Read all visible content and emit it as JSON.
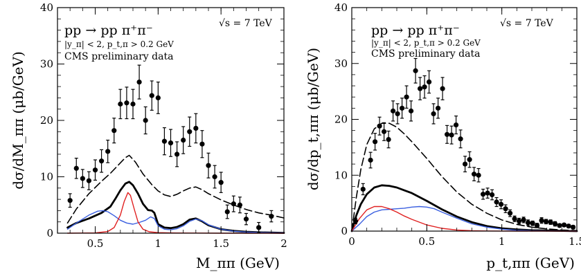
{
  "chart_data": [
    {
      "type": "scatter",
      "xlabel": "M_ππ (GeV)",
      "ylabel": "dσ/dM_ππ (μb/GeV)",
      "xlim": [
        0.2,
        2.0
      ],
      "ylim": [
        0,
        40
      ],
      "xticks": [
        0.5,
        1,
        1.5,
        2
      ],
      "yticks": [
        0,
        10,
        20,
        30,
        40
      ],
      "xtick_labels": [
        "0.5",
        "1",
        "1.5",
        "2"
      ],
      "ytick_labels": [
        "0",
        "10",
        "20",
        "30",
        "40"
      ],
      "grid": false,
      "annotations": {
        "process": "pp → pp π⁺π⁻",
        "energy": "√s = 7 TeV",
        "cuts": "|y_π| < 2,   p_t,π > 0.2 GeV",
        "source": "CMS preliminary data"
      },
      "series": [
        {
          "style": "points-with-errors",
          "color": "#000000",
          "x": [
            0.3,
            0.35,
            0.4,
            0.45,
            0.5,
            0.55,
            0.6,
            0.65,
            0.7,
            0.75,
            0.8,
            0.85,
            0.9,
            0.95,
            1.0,
            1.05,
            1.1,
            1.15,
            1.2,
            1.25,
            1.3,
            1.35,
            1.4,
            1.45,
            1.5,
            1.55,
            1.6,
            1.65,
            1.7,
            1.8,
            1.9
          ],
          "y": [
            5.8,
            11.5,
            9.7,
            9.3,
            11.2,
            12.8,
            14.5,
            18.2,
            22.9,
            23.1,
            22.9,
            26.8,
            20.0,
            24.4,
            24.0,
            16.3,
            16.0,
            14.0,
            16.5,
            18.0,
            18.6,
            15.8,
            12.0,
            10.0,
            9.0,
            3.8,
            5.2,
            5.0,
            2.5,
            1.0,
            3.0
          ],
          "yerr": [
            1.2,
            1.8,
            1.6,
            1.6,
            1.8,
            2.0,
            2.0,
            2.2,
            2.6,
            2.8,
            2.6,
            3.0,
            2.4,
            2.6,
            2.8,
            2.4,
            2.4,
            2.2,
            2.4,
            2.6,
            2.6,
            2.4,
            2.2,
            2.0,
            1.8,
            1.2,
            1.4,
            1.4,
            1.0,
            0.9,
            1.0
          ]
        },
        {
          "style": "dashed",
          "color": "#000000",
          "x": [
            0.28,
            0.35,
            0.45,
            0.55,
            0.62,
            0.68,
            0.74,
            0.77,
            0.82,
            0.88,
            0.95,
            1.0,
            1.05,
            1.1,
            1.15,
            1.2,
            1.25,
            1.3,
            1.35,
            1.4,
            1.5,
            1.6,
            1.7,
            1.8,
            1.9,
            2.0
          ],
          "y": [
            1.8,
            4.3,
            7.0,
            9.2,
            10.6,
            12.0,
            13.4,
            13.8,
            12.6,
            10.5,
            8.6,
            7.5,
            6.8,
            6.5,
            6.9,
            7.5,
            8.0,
            8.2,
            7.7,
            7.0,
            5.9,
            5.0,
            4.2,
            3.6,
            3.2,
            2.7
          ]
        },
        {
          "style": "thick",
          "color": "#000000",
          "x": [
            0.28,
            0.35,
            0.45,
            0.55,
            0.62,
            0.66,
            0.7,
            0.74,
            0.77,
            0.8,
            0.84,
            0.88,
            0.92,
            0.95,
            0.97,
            1.0,
            1.05,
            1.1,
            1.15,
            1.2,
            1.25,
            1.3,
            1.35,
            1.4,
            1.5,
            1.6,
            1.7,
            1.8,
            1.9,
            2.0
          ],
          "y": [
            1.0,
            1.8,
            2.6,
            3.6,
            4.7,
            6.1,
            7.6,
            8.8,
            9.1,
            8.5,
            7.0,
            5.2,
            4.1,
            4.0,
            3.6,
            1.6,
            1.0,
            0.9,
            1.1,
            1.6,
            2.4,
            2.6,
            2.1,
            1.4,
            0.7,
            0.4,
            0.25,
            0.15,
            0.1,
            0.05
          ]
        },
        {
          "style": "solid",
          "color": "#3a5fe0",
          "x": [
            0.28,
            0.35,
            0.45,
            0.52,
            0.56,
            0.6,
            0.65,
            0.7,
            0.75,
            0.8,
            0.85,
            0.9,
            0.94,
            0.97,
            1.0,
            1.05,
            1.1,
            1.15,
            1.2,
            1.25,
            1.3,
            1.35,
            1.4,
            1.5,
            1.6,
            1.7,
            1.8,
            1.9,
            2.0
          ],
          "y": [
            0.7,
            1.8,
            3.2,
            3.9,
            4.0,
            3.8,
            3.1,
            2.3,
            1.8,
            1.6,
            1.9,
            2.3,
            2.9,
            2.6,
            1.3,
            0.7,
            0.6,
            0.8,
            1.3,
            2.1,
            2.5,
            2.2,
            1.5,
            0.7,
            0.35,
            0.2,
            0.12,
            0.08,
            0.05
          ]
        },
        {
          "style": "solid",
          "color": "#e02020",
          "x": [
            0.28,
            0.5,
            0.6,
            0.65,
            0.7,
            0.73,
            0.76,
            0.78,
            0.81,
            0.84,
            0.88,
            0.93,
            1.0,
            1.1,
            1.3,
            1.5,
            2.0
          ],
          "y": [
            0.0,
            0.05,
            0.3,
            1.0,
            3.2,
            5.6,
            7.2,
            6.7,
            4.3,
            2.0,
            0.7,
            0.25,
            0.1,
            0.05,
            0.02,
            0.0,
            0.0
          ]
        }
      ]
    },
    {
      "type": "scatter",
      "xlabel": "p_t,ππ (GeV)",
      "ylabel": "dσ/dp_t,ππ (μb/GeV)",
      "xlim": [
        0,
        1.5
      ],
      "ylim": [
        0,
        40
      ],
      "xticks": [
        0,
        0.5,
        1,
        1.5
      ],
      "yticks": [
        0,
        10,
        20,
        30,
        40
      ],
      "xtick_labels": [
        "0",
        "0.5",
        "1",
        "1.5"
      ],
      "ytick_labels": [
        "0",
        "10",
        "20",
        "30",
        "40"
      ],
      "grid": false,
      "annotations": {
        "process": "pp → pp π⁺π⁻",
        "energy": "√s = 7 TeV",
        "cuts": "|y_π| < 2,   p_t,π > 0.2 GeV",
        "source": "CMS preliminary data"
      },
      "series": [
        {
          "style": "points-with-errors",
          "color": "#000000",
          "x": [
            0.025,
            0.075,
            0.125,
            0.155,
            0.185,
            0.215,
            0.245,
            0.275,
            0.305,
            0.335,
            0.365,
            0.395,
            0.425,
            0.455,
            0.485,
            0.515,
            0.545,
            0.575,
            0.605,
            0.635,
            0.665,
            0.695,
            0.725,
            0.755,
            0.785,
            0.815,
            0.845,
            0.875,
            0.905,
            0.935,
            0.965,
            0.995,
            1.025,
            1.055,
            1.085,
            1.115,
            1.145,
            1.175,
            1.205,
            1.235,
            1.265,
            1.295,
            1.325,
            1.355,
            1.385,
            1.415,
            1.445,
            1.475
          ],
          "y": [
            1.8,
            7.5,
            12.7,
            16.0,
            18.8,
            17.8,
            16.4,
            21.5,
            21.0,
            22.0,
            24.0,
            21.5,
            28.7,
            25.5,
            25.8,
            26.7,
            21.0,
            22.0,
            25.5,
            17.3,
            17.2,
            19.0,
            16.5,
            12.0,
            12.8,
            10.2,
            10.0,
            6.6,
            6.8,
            6.5,
            5.2,
            4.8,
            4.0,
            3.2,
            2.2,
            1.8,
            2.0,
            1.5,
            1.4,
            1.0,
            1.9,
            1.7,
            1.6,
            1.3,
            1.0,
            1.1,
            0.9,
            0.7
          ],
          "yerr": [
            0.5,
            1.0,
            1.4,
            1.5,
            1.6,
            1.6,
            1.5,
            1.8,
            1.8,
            1.8,
            2.0,
            1.8,
            2.2,
            2.0,
            2.0,
            2.0,
            1.8,
            1.8,
            2.0,
            1.6,
            1.6,
            1.6,
            1.6,
            1.4,
            1.4,
            1.2,
            1.2,
            0.9,
            0.9,
            0.9,
            0.8,
            0.8,
            0.7,
            0.6,
            0.5,
            0.5,
            0.5,
            0.5,
            0.4,
            0.4,
            0.5,
            0.4,
            0.4,
            0.4,
            0.3,
            0.3,
            0.3,
            0.3
          ]
        },
        {
          "style": "dashed",
          "color": "#000000",
          "x": [
            0.0,
            0.03,
            0.06,
            0.1,
            0.15,
            0.2,
            0.25,
            0.3,
            0.35,
            0.4,
            0.5,
            0.6,
            0.7,
            0.8,
            0.9,
            1.0,
            1.1,
            1.2,
            1.3,
            1.4,
            1.5
          ],
          "y": [
            0.0,
            6.0,
            11.0,
            15.5,
            18.3,
            19.3,
            19.3,
            18.6,
            17.4,
            16.0,
            13.0,
            9.8,
            7.0,
            4.8,
            3.2,
            2.0,
            1.2,
            0.7,
            0.4,
            0.2,
            0.1
          ]
        },
        {
          "style": "thick",
          "color": "#000000",
          "x": [
            0.0,
            0.03,
            0.06,
            0.1,
            0.15,
            0.2,
            0.25,
            0.3,
            0.35,
            0.4,
            0.5,
            0.6,
            0.7,
            0.8,
            0.9,
            1.0,
            1.1,
            1.2,
            1.3,
            1.4,
            1.5
          ],
          "y": [
            0.0,
            2.8,
            4.8,
            6.6,
            7.8,
            8.2,
            8.1,
            7.8,
            7.3,
            6.8,
            5.4,
            3.9,
            2.6,
            1.6,
            0.9,
            0.5,
            0.3,
            0.15,
            0.1,
            0.05,
            0.0
          ]
        },
        {
          "style": "solid",
          "color": "#3a5fe0",
          "x": [
            0.0,
            0.05,
            0.1,
            0.15,
            0.2,
            0.25,
            0.3,
            0.35,
            0.4,
            0.45,
            0.5,
            0.55,
            0.6,
            0.7,
            0.8,
            0.9,
            1.0,
            1.1,
            1.2,
            1.3,
            1.4,
            1.5
          ],
          "y": [
            0.0,
            1.2,
            2.6,
            3.4,
            3.8,
            3.9,
            4.0,
            4.1,
            4.3,
            4.4,
            4.3,
            4.0,
            3.4,
            2.3,
            1.3,
            0.7,
            0.35,
            0.15,
            0.08,
            0.04,
            0.02,
            0.0
          ]
        },
        {
          "style": "solid",
          "color": "#e02020",
          "x": [
            0.0,
            0.05,
            0.1,
            0.15,
            0.2,
            0.25,
            0.3,
            0.35,
            0.4,
            0.5,
            0.6,
            0.7,
            0.8,
            0.9,
            1.0,
            1.2,
            1.5
          ],
          "y": [
            0.0,
            2.2,
            3.8,
            4.4,
            4.4,
            4.0,
            3.4,
            2.7,
            2.1,
            1.1,
            0.5,
            0.2,
            0.08,
            0.03,
            0.01,
            0.0,
            0.0
          ]
        }
      ]
    }
  ]
}
